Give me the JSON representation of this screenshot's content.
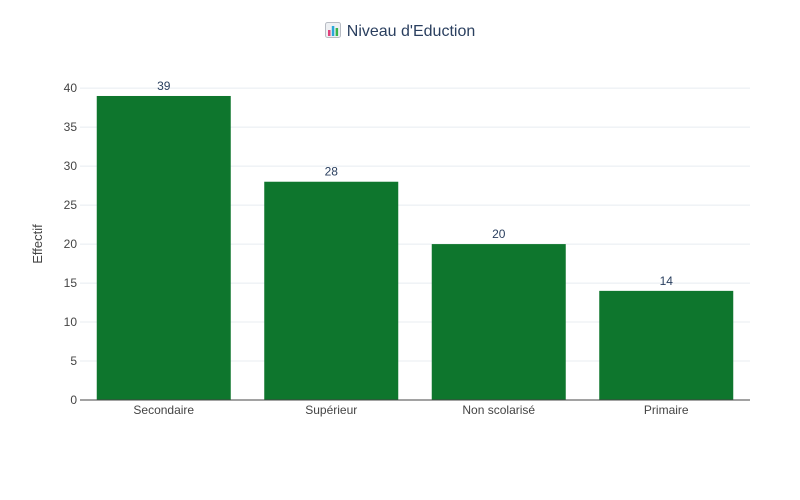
{
  "chart_data": {
    "type": "bar",
    "title": "Niveau d'Eduction",
    "title_icon": "bar-chart-emoji-icon",
    "xlabel": "",
    "ylabel": "Effectif",
    "categories": [
      "Secondaire",
      "Supérieur",
      "Non scolarisé",
      "Primaire"
    ],
    "values": [
      39,
      28,
      20,
      14
    ],
    "data_labels": [
      "39",
      "28",
      "20",
      "14"
    ],
    "ylim": [
      0,
      41.05
    ],
    "y_ticks": [
      0,
      5,
      10,
      15,
      20,
      25,
      30,
      35,
      40
    ],
    "grid": true,
    "legend": "none",
    "colors": {
      "bar": "#0e762d",
      "grid": "#e8ecf1",
      "axis": "#444444",
      "title": "#2a3f5f"
    }
  }
}
